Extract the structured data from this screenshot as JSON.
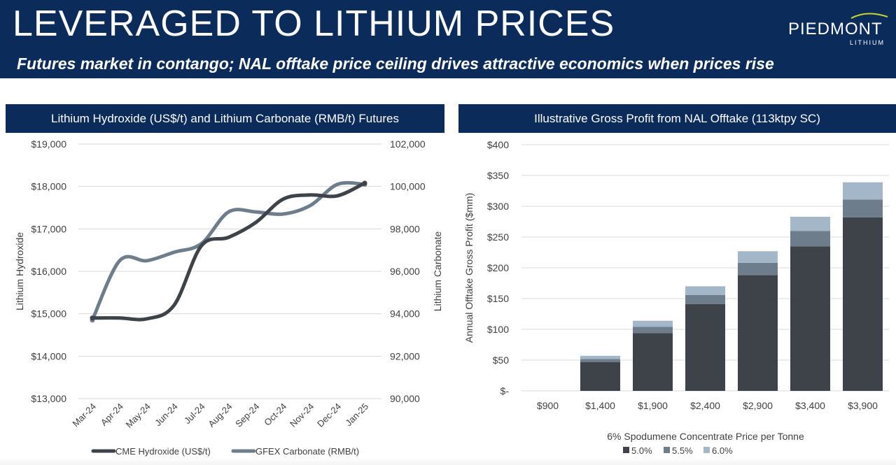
{
  "header": {
    "title": "LEVERAGED TO LITHIUM PRICES",
    "subtitle": "Futures market in contango; NAL offtake price ceiling drives attractive economics when prices rise"
  },
  "logo": {
    "name": "PIEDMONT",
    "sub": "LITHIUM",
    "swoosh_color": "#c8d630"
  },
  "colors": {
    "navy": "#0b2c5b",
    "dark": "#3d4349",
    "mid": "#6e7d8b",
    "light": "#a3b7c8",
    "grid": "#d9d9d9",
    "axis_text": "#404040"
  },
  "chart_data": [
    {
      "type": "line",
      "title": "Lithium Hydroxide (US$/t) and Lithium Carbonate (RMB/t) Futures",
      "x": [
        "Mar-24",
        "Apr-24",
        "May-24",
        "Jun-24",
        "Jul-24",
        "Aug-24",
        "Sep-24",
        "Oct-24",
        "Nov-24",
        "Dec-24",
        "Jan-25"
      ],
      "left_axis": {
        "label": "Lithium Hydroxide",
        "ylim": [
          13000,
          19000
        ],
        "ticks": [
          13000,
          14000,
          15000,
          16000,
          17000,
          18000,
          19000
        ],
        "tick_labels": [
          "$13,000",
          "$14,000",
          "$15,000",
          "$16,000",
          "$17,000",
          "$18,000",
          "$19,000"
        ]
      },
      "right_axis": {
        "label": "Lithium Carbonate",
        "ylim": [
          90000,
          102000
        ],
        "ticks": [
          90000,
          92000,
          94000,
          96000,
          98000,
          100000,
          102000
        ],
        "tick_labels": [
          "90,000",
          "92,000",
          "94,000",
          "96,000",
          "98,000",
          "100,000",
          "102,000"
        ]
      },
      "series": [
        {
          "name": "CME Hydroxide (US$/t)",
          "axis": "left",
          "color": "#3d4349",
          "values": [
            14900,
            14900,
            14880,
            15200,
            16600,
            16800,
            17150,
            17700,
            17800,
            17780,
            18080
          ]
        },
        {
          "name": "GFEX Carbonate (RMB/t)",
          "axis": "right",
          "color": "#6e7d8b",
          "values": [
            93700,
            96500,
            96500,
            96900,
            97300,
            98800,
            98800,
            98700,
            99100,
            100100,
            100100
          ]
        }
      ],
      "legend": "bottom"
    },
    {
      "type": "bar",
      "stacked": true,
      "title": "Illustrative Gross Profit from NAL Offtake (113ktpy SC)",
      "categories": [
        "$900",
        "$1,400",
        "$1,900",
        "$2,400",
        "$2,900",
        "$3,400",
        "$3,900"
      ],
      "xlabel": "6% Spodumene Concentrate Price per Tonne",
      "ylabel": "Annual Offtake Gross Profit ($mm)",
      "ylim": [
        0,
        400
      ],
      "ticks": [
        0,
        50,
        100,
        150,
        200,
        250,
        300,
        350,
        400
      ],
      "tick_labels": [
        "$-",
        "$50",
        "$100",
        "$150",
        "$200",
        "$250",
        "$300",
        "$350",
        "$400"
      ],
      "series": [
        {
          "name": "5.0%",
          "color": "#3d4349",
          "values": [
            0,
            47,
            94,
            141,
            188,
            235,
            282
          ]
        },
        {
          "name": "5.5%",
          "color": "#6e7d8b",
          "values": [
            0,
            5,
            10,
            15,
            20,
            25,
            29
          ]
        },
        {
          "name": "6.0%",
          "color": "#a3b7c8",
          "values": [
            0,
            5,
            10,
            14,
            19,
            23,
            28
          ]
        }
      ],
      "legend": "bottom"
    }
  ]
}
